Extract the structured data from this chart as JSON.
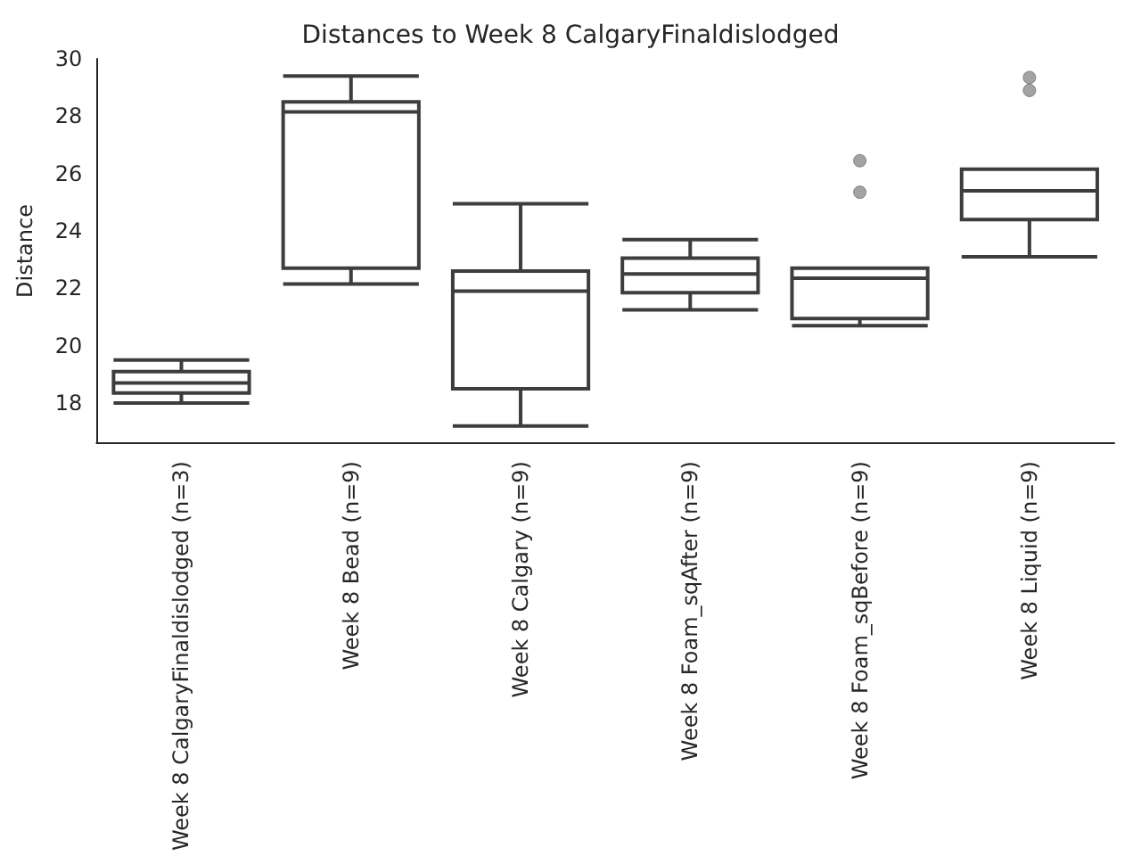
{
  "chart_data": {
    "type": "box",
    "title": "Distances to Week 8 CalgaryFinaldislodged",
    "ylabel": "Distance",
    "categories": [
      "Week 8 CalgaryFinaldislodged (n=3)",
      "Week 8 Bead (n=9)",
      "Week 8 Calgary (n=9)",
      "Week 8 Foam_sqAfter (n=9)",
      "Week 8 Foam_sqBefore (n=9)",
      "Week 8 Liquid (n=9)"
    ],
    "boxes": [
      {
        "low": 18.0,
        "q1": 18.35,
        "median": 18.7,
        "q3": 19.1,
        "high": 19.5
      },
      {
        "low": 22.15,
        "q1": 22.7,
        "median": 28.15,
        "q3": 28.5,
        "high": 29.4
      },
      {
        "low": 17.2,
        "q1": 18.5,
        "median": 21.9,
        "q3": 22.6,
        "high": 24.95
      },
      {
        "low": 21.25,
        "q1": 21.85,
        "median": 22.5,
        "q3": 23.05,
        "high": 23.7
      },
      {
        "low": 20.7,
        "q1": 20.95,
        "median": 22.35,
        "q3": 22.7,
        "high": 22.7,
        "outliers": [
          26.45,
          25.35
        ]
      },
      {
        "low": 23.1,
        "q1": 24.4,
        "median": 25.4,
        "q3": 26.15,
        "high": 26.15,
        "outliers": [
          29.35,
          28.9
        ]
      }
    ],
    "color": "#3d3d3d",
    "ylim": [
      16.6,
      30
    ],
    "yticks": [
      18,
      20,
      22,
      24,
      26,
      28,
      30
    ],
    "grid": false
  }
}
